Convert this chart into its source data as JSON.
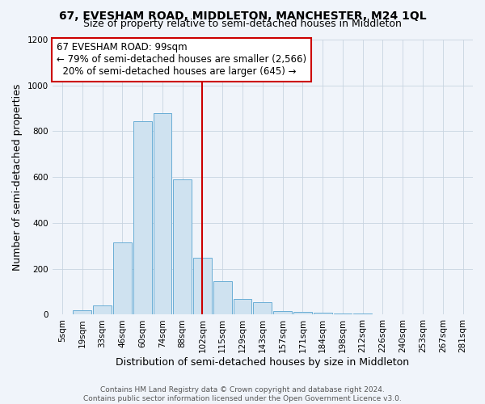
{
  "title": "67, EVESHAM ROAD, MIDDLETON, MANCHESTER, M24 1QL",
  "subtitle": "Size of property relative to semi-detached houses in Middleton",
  "xlabel": "Distribution of semi-detached houses by size in Middleton",
  "ylabel": "Number of semi-detached properties",
  "footer": "Contains HM Land Registry data © Crown copyright and database right 2024.\nContains public sector information licensed under the Open Government Licence v3.0.",
  "categories": [
    "5sqm",
    "19sqm",
    "33sqm",
    "46sqm",
    "60sqm",
    "74sqm",
    "88sqm",
    "102sqm",
    "115sqm",
    "129sqm",
    "143sqm",
    "157sqm",
    "171sqm",
    "184sqm",
    "198sqm",
    "212sqm",
    "226sqm",
    "240sqm",
    "253sqm",
    "267sqm",
    "281sqm"
  ],
  "values": [
    2,
    20,
    40,
    315,
    845,
    880,
    590,
    250,
    145,
    70,
    55,
    15,
    12,
    8,
    5,
    4,
    2,
    1,
    1,
    1,
    1
  ],
  "pct_smaller": 79,
  "count_smaller": 2566,
  "pct_larger": 20,
  "count_larger": 645,
  "bar_color": "#cfe2f0",
  "bar_edge_color": "#6aaed6",
  "vline_x_index": 7,
  "vline_color": "#cc0000",
  "annotation_box_color": "#ffffff",
  "annotation_box_edge_color": "#cc0000",
  "ylim": [
    0,
    1200
  ],
  "yticks": [
    0,
    200,
    400,
    600,
    800,
    1000,
    1200
  ],
  "background_color": "#f0f4fa",
  "title_fontsize": 10,
  "subtitle_fontsize": 9,
  "axis_label_fontsize": 9,
  "tick_fontsize": 7.5,
  "footer_fontsize": 6.5,
  "annotation_fontsize": 8.5
}
